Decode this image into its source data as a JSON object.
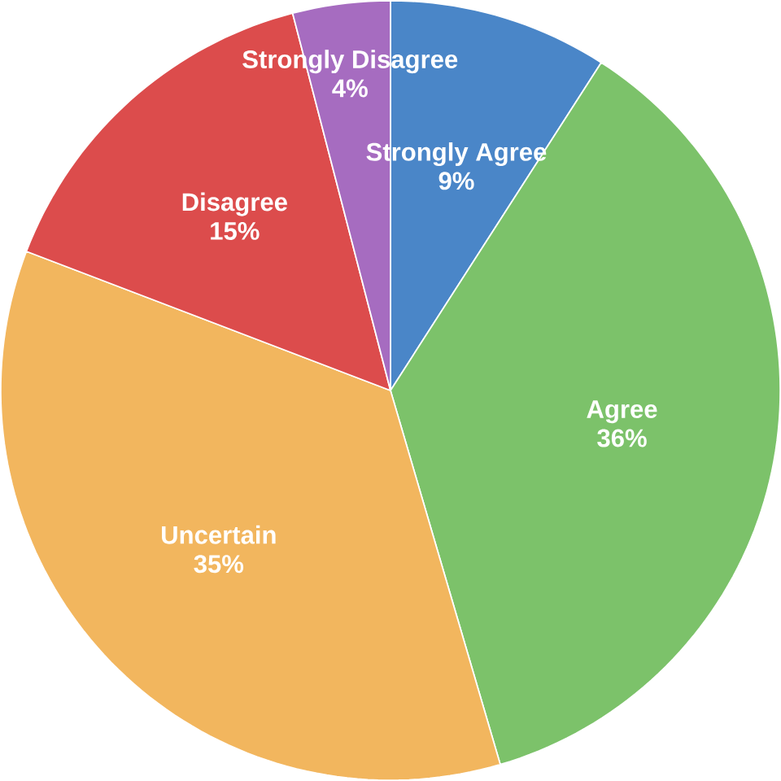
{
  "chart_data": {
    "type": "pie",
    "categories": [
      "Strongly Agree",
      "Agree",
      "Uncertain",
      "Disagree",
      "Strongly Disagree"
    ],
    "values": [
      9,
      36,
      35,
      15,
      4
    ],
    "value_labels": [
      "9%",
      "36%",
      "35%",
      "15%",
      "4%"
    ],
    "colors": [
      "#4a86c8",
      "#7cc26a",
      "#f2b65e",
      "#dc4c4c",
      "#a66cc0"
    ]
  }
}
